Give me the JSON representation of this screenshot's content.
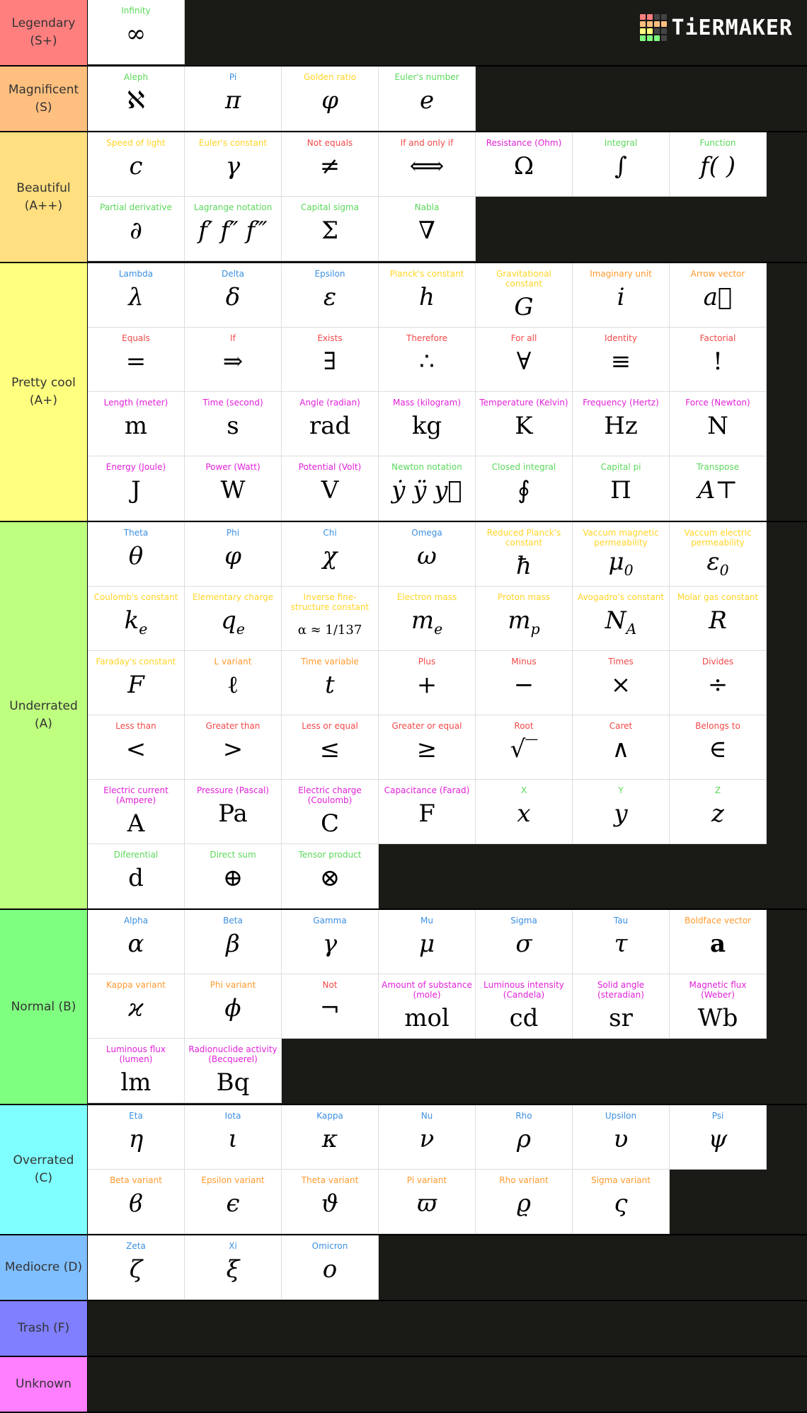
{
  "logo": {
    "text": "TiERMAKER",
    "grid_colors": [
      "#ff7f7f",
      "#ff7f7f",
      "#444",
      "#444",
      "#ffbf7f",
      "#ffbf7f",
      "#ffbf7f",
      "#ffbf7f",
      "#ffff7f",
      "#ffff7f",
      "#444",
      "#444",
      "#7fff7f",
      "#7fff7f",
      "#7fff7f",
      "#444"
    ]
  },
  "colors": {
    "g": "#5ad85a",
    "b": "#3b8fe0",
    "y": "#ffd426",
    "r": "#f24848",
    "m": "#e020d8",
    "o": "#ff9a2e"
  },
  "tiers": [
    {
      "label": "Legendary (S+)",
      "color": "#ff7f7f",
      "items": [
        {
          "label": "Infinity",
          "sym": "∞",
          "c": "g"
        }
      ]
    },
    {
      "label": "Magnificent (S)",
      "color": "#ffbf7f",
      "items": [
        {
          "label": "Aleph",
          "sym": "ℵ",
          "c": "g"
        },
        {
          "label": "Pi",
          "sym": "π",
          "c": "b",
          "i": 1
        },
        {
          "label": "Golden ratio",
          "sym": "φ",
          "c": "y",
          "i": 1
        },
        {
          "label": "Euler's number",
          "sym": "e",
          "c": "g",
          "i": 1
        }
      ]
    },
    {
      "label": "Beautiful (A++)",
      "color": "#ffdf7f",
      "items": [
        {
          "label": "Speed of light",
          "sym": "c",
          "c": "y",
          "i": 1
        },
        {
          "label": "Euler's constant",
          "sym": "γ",
          "c": "y",
          "i": 1
        },
        {
          "label": "Not equals",
          "sym": "≠",
          "c": "r"
        },
        {
          "label": "If and only if",
          "sym": "⟺",
          "c": "r"
        },
        {
          "label": "Resistance (Ohm)",
          "sym": "Ω",
          "c": "m"
        },
        {
          "label": "Integral",
          "sym": "∫",
          "c": "g"
        },
        {
          "label": "Function",
          "sym": "f(  )",
          "c": "g",
          "i": 1
        },
        {
          "label": "Partial derivative",
          "sym": "∂",
          "c": "g"
        },
        {
          "label": "Lagrange notation",
          "sym": "f′ f″ f‴",
          "c": "g",
          "i": 1
        },
        {
          "label": "Capital sigma",
          "sym": "Σ",
          "c": "g"
        },
        {
          "label": "Nabla",
          "sym": "∇",
          "c": "g"
        }
      ]
    },
    {
      "label": "Pretty cool (A+)",
      "color": "#ffff7f",
      "items": [
        {
          "label": "Lambda",
          "sym": "λ",
          "c": "b",
          "i": 1
        },
        {
          "label": "Delta",
          "sym": "δ",
          "c": "b",
          "i": 1
        },
        {
          "label": "Epsilon",
          "sym": "ε",
          "c": "b",
          "i": 1
        },
        {
          "label": "Planck's constant",
          "sym": "h",
          "c": "y",
          "i": 1
        },
        {
          "label": "Gravitational constant",
          "sym": "G",
          "c": "y",
          "i": 1
        },
        {
          "label": "Imaginary unit",
          "sym": "i",
          "c": "o",
          "i": 1
        },
        {
          "label": "Arrow vector",
          "sym": "a⃗",
          "c": "o",
          "i": 1
        },
        {
          "label": "Equals",
          "sym": "=",
          "c": "r"
        },
        {
          "label": "If",
          "sym": "⇒",
          "c": "r"
        },
        {
          "label": "Exists",
          "sym": "∃",
          "c": "r"
        },
        {
          "label": "Therefore",
          "sym": "∴",
          "c": "r"
        },
        {
          "label": "For all",
          "sym": "∀",
          "c": "r"
        },
        {
          "label": "Identity",
          "sym": "≡",
          "c": "r"
        },
        {
          "label": "Factorial",
          "sym": "!",
          "c": "r"
        },
        {
          "label": "Length (meter)",
          "sym": "m",
          "c": "m"
        },
        {
          "label": "Time (second)",
          "sym": "s",
          "c": "m"
        },
        {
          "label": "Angle (radian)",
          "sym": "rad",
          "c": "m"
        },
        {
          "label": "Mass (kilogram)",
          "sym": "kg",
          "c": "m"
        },
        {
          "label": "Temperature (Kelvin)",
          "sym": "K",
          "c": "m"
        },
        {
          "label": "Frequency (Hertz)",
          "sym": "Hz",
          "c": "m"
        },
        {
          "label": "Force (Newton)",
          "sym": "N",
          "c": "m"
        },
        {
          "label": "Energy (Joule)",
          "sym": "J",
          "c": "m"
        },
        {
          "label": "Power (Watt)",
          "sym": "W",
          "c": "m"
        },
        {
          "label": "Potential (Volt)",
          "sym": "V",
          "c": "m"
        },
        {
          "label": "Newton notation",
          "sym": "ẏ ÿ y⃛",
          "c": "g",
          "i": 1
        },
        {
          "label": "Closed integral",
          "sym": "∮",
          "c": "g"
        },
        {
          "label": "Capital pi",
          "sym": "Π",
          "c": "g"
        },
        {
          "label": "Transpose",
          "sym": "A⊤",
          "c": "g",
          "i": 1
        }
      ]
    },
    {
      "label": "Underrated (A)",
      "color": "#bfff7f",
      "items": [
        {
          "label": "Theta",
          "sym": "θ",
          "c": "b",
          "i": 1
        },
        {
          "label": "Phi",
          "sym": "φ",
          "c": "b",
          "i": 1
        },
        {
          "label": "Chi",
          "sym": "χ",
          "c": "b",
          "i": 1
        },
        {
          "label": "Omega",
          "sym": "ω",
          "c": "b",
          "i": 1
        },
        {
          "label": "Reduced Planck's constant",
          "sym": "ħ",
          "c": "y",
          "i": 1
        },
        {
          "label": "Vaccum magnetic permeability",
          "sym": "μ",
          "sub": "0",
          "c": "y",
          "i": 1
        },
        {
          "label": "Vaccum electric permeability",
          "sym": "ε",
          "sub": "0",
          "c": "y",
          "i": 1
        },
        {
          "label": "Coulomb's constant",
          "sym": "k",
          "sub": "e",
          "c": "y",
          "i": 1
        },
        {
          "label": "Elementary charge",
          "sym": "q",
          "sub": "e",
          "c": "y",
          "i": 1
        },
        {
          "label": "Inverse fine-structure constant",
          "sym": "α ≈ 1/137",
          "c": "y",
          "sm": 1
        },
        {
          "label": "Electron mass",
          "sym": "m",
          "sub": "e",
          "c": "y",
          "i": 1
        },
        {
          "label": "Proton mass",
          "sym": "m",
          "sub": "p",
          "c": "y",
          "i": 1
        },
        {
          "label": "Avogadro's constant",
          "sym": "N",
          "sub": "A",
          "c": "y",
          "i": 1
        },
        {
          "label": "Molar gas constant",
          "sym": "R",
          "c": "y",
          "i": 1
        },
        {
          "label": "Faraday's constant",
          "sym": "F",
          "c": "y",
          "i": 1
        },
        {
          "label": "L variant",
          "sym": "ℓ",
          "c": "o"
        },
        {
          "label": "Time variable",
          "sym": "t",
          "c": "o",
          "i": 1
        },
        {
          "label": "Plus",
          "sym": "+",
          "c": "r"
        },
        {
          "label": "Minus",
          "sym": "−",
          "c": "r"
        },
        {
          "label": "Times",
          "sym": "×",
          "c": "r"
        },
        {
          "label": "Divides",
          "sym": "÷",
          "c": "r"
        },
        {
          "label": "Less than",
          "sym": "<",
          "c": "r"
        },
        {
          "label": "Greater than",
          "sym": ">",
          "c": "r"
        },
        {
          "label": "Less or equal",
          "sym": "≤",
          "c": "r"
        },
        {
          "label": "Greater or equal",
          "sym": "≥",
          "c": "r"
        },
        {
          "label": "Root",
          "sym": "√‾",
          "c": "r"
        },
        {
          "label": "Caret",
          "sym": "∧",
          "c": "r"
        },
        {
          "label": "Belongs to",
          "sym": "∈",
          "c": "r"
        },
        {
          "label": "Electric current (Ampere)",
          "sym": "A",
          "c": "m"
        },
        {
          "label": "Pressure (Pascal)",
          "sym": "Pa",
          "c": "m"
        },
        {
          "label": "Electric charge (Coulomb)",
          "sym": "C",
          "c": "m"
        },
        {
          "label": "Capacitance (Farad)",
          "sym": "F",
          "c": "m"
        },
        {
          "label": "X",
          "sym": "x",
          "c": "g",
          "i": 1
        },
        {
          "label": "Y",
          "sym": "y",
          "c": "g",
          "i": 1
        },
        {
          "label": "Z",
          "sym": "z",
          "c": "g",
          "i": 1
        },
        {
          "label": "Diferential",
          "sym": "d",
          "c": "g"
        },
        {
          "label": "Direct sum",
          "sym": "⊕",
          "c": "g"
        },
        {
          "label": "Tensor product",
          "sym": "⊗",
          "c": "g"
        }
      ]
    },
    {
      "label": "Normal (B)",
      "color": "#7fff7f",
      "items": [
        {
          "label": "Alpha",
          "sym": "α",
          "c": "b",
          "i": 1
        },
        {
          "label": "Beta",
          "sym": "β",
          "c": "b",
          "i": 1
        },
        {
          "label": "Gamma",
          "sym": "γ",
          "c": "b",
          "i": 1
        },
        {
          "label": "Mu",
          "sym": "μ",
          "c": "b",
          "i": 1
        },
        {
          "label": "Sigma",
          "sym": "σ",
          "c": "b",
          "i": 1
        },
        {
          "label": "Tau",
          "sym": "τ",
          "c": "b",
          "i": 1
        },
        {
          "label": "Boldface vector",
          "sym": "a",
          "c": "o",
          "bold": 1
        },
        {
          "label": "Kappa variant",
          "sym": "ϰ",
          "c": "o",
          "i": 1
        },
        {
          "label": "Phi variant",
          "sym": "ϕ",
          "c": "o",
          "i": 1
        },
        {
          "label": "Not",
          "sym": "¬",
          "c": "r"
        },
        {
          "label": "Amount of substance (mole)",
          "sym": "mol",
          "c": "m"
        },
        {
          "label": "Luminous intensity (Candela)",
          "sym": "cd",
          "c": "m"
        },
        {
          "label": "Solid angle (steradian)",
          "sym": "sr",
          "c": "m"
        },
        {
          "label": "Magnetic flux (Weber)",
          "sym": "Wb",
          "c": "m"
        },
        {
          "label": "Luminous flux (lumen)",
          "sym": "lm",
          "c": "m"
        },
        {
          "label": "Radionuclide activity (Becquerel)",
          "sym": "Bq",
          "c": "m"
        }
      ]
    },
    {
      "label": "Overrated (C)",
      "color": "#7fffff",
      "items": [
        {
          "label": "Eta",
          "sym": "η",
          "c": "b",
          "i": 1
        },
        {
          "label": "Iota",
          "sym": "ι",
          "c": "b",
          "i": 1
        },
        {
          "label": "Kappa",
          "sym": "κ",
          "c": "b",
          "i": 1
        },
        {
          "label": "Nu",
          "sym": "ν",
          "c": "b",
          "i": 1
        },
        {
          "label": "Rho",
          "sym": "ρ",
          "c": "b",
          "i": 1
        },
        {
          "label": "Upsilon",
          "sym": "υ",
          "c": "b",
          "i": 1
        },
        {
          "label": "Psi",
          "sym": "ψ",
          "c": "b",
          "i": 1
        },
        {
          "label": "Beta variant",
          "sym": "ϐ",
          "c": "o",
          "i": 1
        },
        {
          "label": "Epsilon variant",
          "sym": "ϵ",
          "c": "o",
          "i": 1
        },
        {
          "label": "Theta variant",
          "sym": "ϑ",
          "c": "o",
          "i": 1
        },
        {
          "label": "Pi variant",
          "sym": "ϖ",
          "c": "o",
          "i": 1
        },
        {
          "label": "Rho variant",
          "sym": "ϱ",
          "c": "o",
          "i": 1
        },
        {
          "label": "Sigma variant",
          "sym": "ς",
          "c": "o",
          "i": 1
        }
      ]
    },
    {
      "label": "Mediocre (D)",
      "color": "#7fbfff",
      "items": [
        {
          "label": "Zeta",
          "sym": "ζ",
          "c": "b",
          "i": 1
        },
        {
          "label": "Xi",
          "sym": "ξ",
          "c": "b",
          "i": 1
        },
        {
          "label": "Omicron",
          "sym": "ο",
          "c": "b",
          "i": 1
        }
      ]
    },
    {
      "label": "Trash (F)",
      "color": "#7f7fff",
      "items": []
    },
    {
      "label": "Unknown",
      "color": "#ff7fff",
      "items": []
    }
  ]
}
